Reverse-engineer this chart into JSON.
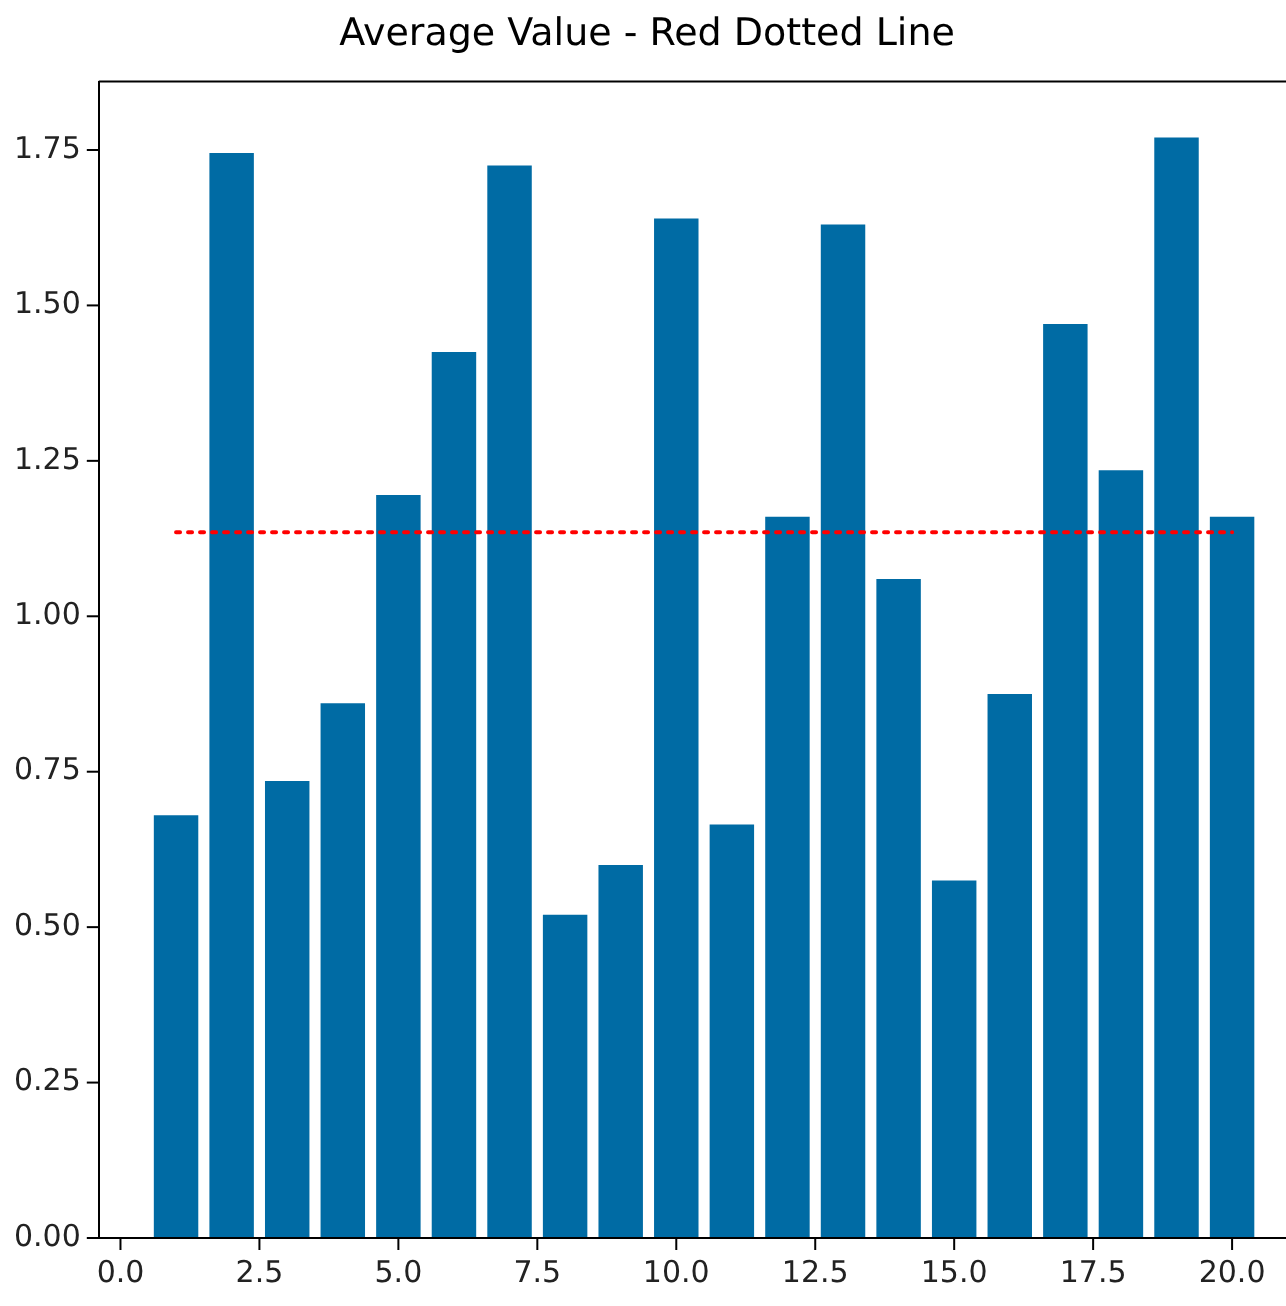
{
  "chart_data": {
    "type": "bar",
    "title": "Average Value - Red Dotted Line",
    "x": [
      1,
      2,
      3,
      4,
      5,
      6,
      7,
      8,
      9,
      10,
      11,
      12,
      13,
      14,
      15,
      16,
      17,
      18,
      19,
      20
    ],
    "series": [
      {
        "color": "#006ba4",
        "values": [
          0.68,
          1.745,
          0.735,
          0.86,
          1.195,
          1.425,
          1.725,
          0.52,
          0.6,
          1.64,
          0.665,
          1.16,
          1.63,
          1.06,
          0.575,
          0.875,
          1.47,
          1.235,
          1.77,
          1.16
        ]
      },
      {
        "type": "line",
        "color": "#ff0000",
        "x": [
          1,
          20
        ],
        "values": [
          1.135,
          1.135
        ],
        "line_style": "dotted",
        "marker": "none"
      }
    ],
    "xlim": [
      -0.39,
      20.97
    ],
    "ylim": [
      0,
      1.86
    ],
    "xticks": [
      {
        "value": 0,
        "label": "0.0"
      },
      {
        "value": 2.5,
        "label": "2.5"
      },
      {
        "value": 5,
        "label": "5.0"
      },
      {
        "value": 7.5,
        "label": "7.5"
      },
      {
        "value": 10,
        "label": "10.0"
      },
      {
        "value": 12.5,
        "label": "12.5"
      },
      {
        "value": 15,
        "label": "15.0"
      },
      {
        "value": 17.5,
        "label": "17.5"
      },
      {
        "value": 20,
        "label": "20.0"
      }
    ],
    "yticks": [
      {
        "value": 0,
        "label": "0.00"
      },
      {
        "value": 0.25,
        "label": "0.25"
      },
      {
        "value": 0.5,
        "label": "0.50"
      },
      {
        "value": 0.75,
        "label": "0.75"
      },
      {
        "value": 1,
        "label": "1.00"
      },
      {
        "value": 1.25,
        "label": "1.25"
      },
      {
        "value": 1.5,
        "label": "1.50"
      },
      {
        "value": 1.75,
        "label": "1.75"
      }
    ],
    "grid": false,
    "legend": false
  }
}
